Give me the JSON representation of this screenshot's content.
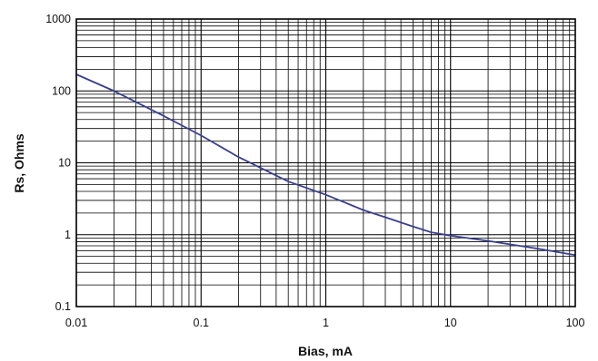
{
  "chart_data": {
    "type": "line",
    "title": "",
    "xlabel": "Bias, mA",
    "ylabel": "Rs, Ohms",
    "x_scale": "log",
    "y_scale": "log",
    "xlim": [
      0.01,
      100
    ],
    "ylim": [
      0.1,
      1000
    ],
    "x_tick_labels": [
      "0.01",
      "0.1",
      "1",
      "10",
      "100"
    ],
    "y_tick_labels": [
      "0.1",
      "1",
      "10",
      "100",
      "1000"
    ],
    "grid": true,
    "legend": "none",
    "series": [
      {
        "color": "#3a3f8f",
        "x": [
          0.01,
          0.02,
          0.05,
          0.1,
          0.2,
          0.3,
          0.5,
          1,
          2,
          3,
          5,
          7,
          10,
          20,
          50,
          100
        ],
        "y": [
          170,
          100,
          45,
          24,
          12,
          8.5,
          5.5,
          3.6,
          2.2,
          1.75,
          1.3,
          1.08,
          0.97,
          0.82,
          0.64,
          0.52
        ]
      }
    ]
  }
}
